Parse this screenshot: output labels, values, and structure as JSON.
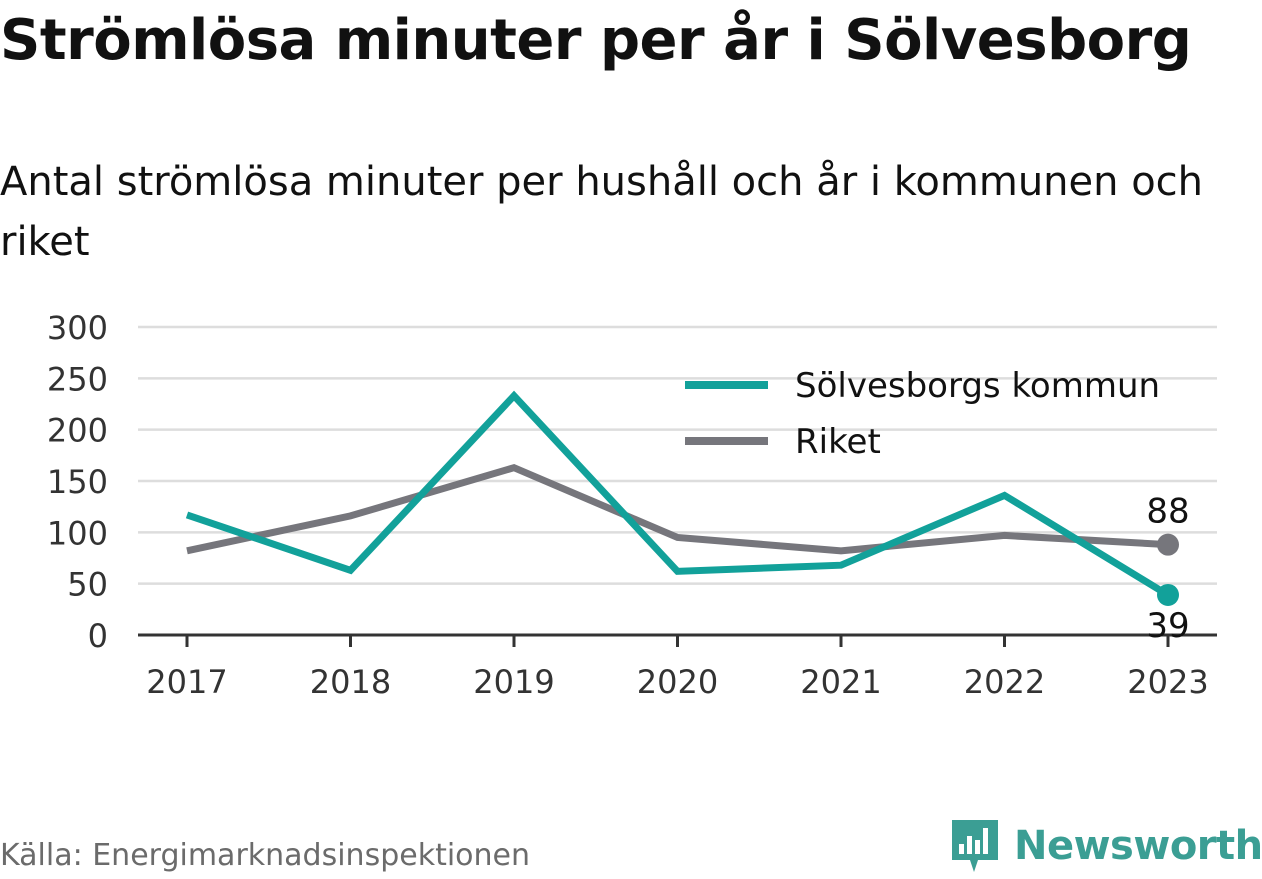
{
  "title": "Strömlösa minuter per år i Sölvesborg",
  "subtitle": "Antal strömlösa minuter per hushåll och år i kommunen och riket",
  "source": "Källa: Energimarknadsinspektionen",
  "logo": {
    "text": "Newsworthy",
    "icon": "newsworthy-logo-icon"
  },
  "colors": {
    "kommun": "#12a19a",
    "riket": "#76767c",
    "grid": "#dddddd",
    "axis": "#333333",
    "brand": "#3b9e94"
  },
  "chart_data": {
    "type": "line",
    "title": "Strömlösa minuter per år i Sölvesborg",
    "subtitle": "Antal strömlösa minuter per hushåll och år i kommunen och riket",
    "categories": [
      "2017",
      "2018",
      "2019",
      "2020",
      "2021",
      "2022",
      "2023"
    ],
    "ylim": [
      0,
      300
    ],
    "yticks": [
      0,
      50,
      100,
      150,
      200,
      250,
      300
    ],
    "grid": true,
    "legend_position": "top-right",
    "series": [
      {
        "name": "Sölvesborgs kommun",
        "color": "#12a19a",
        "values": [
          117,
          63,
          233,
          62,
          68,
          136,
          39
        ],
        "end_label": "39"
      },
      {
        "name": "Riket",
        "color": "#76767c",
        "values": [
          82,
          116,
          163,
          95,
          82,
          97,
          88
        ],
        "end_label": "88"
      }
    ]
  }
}
